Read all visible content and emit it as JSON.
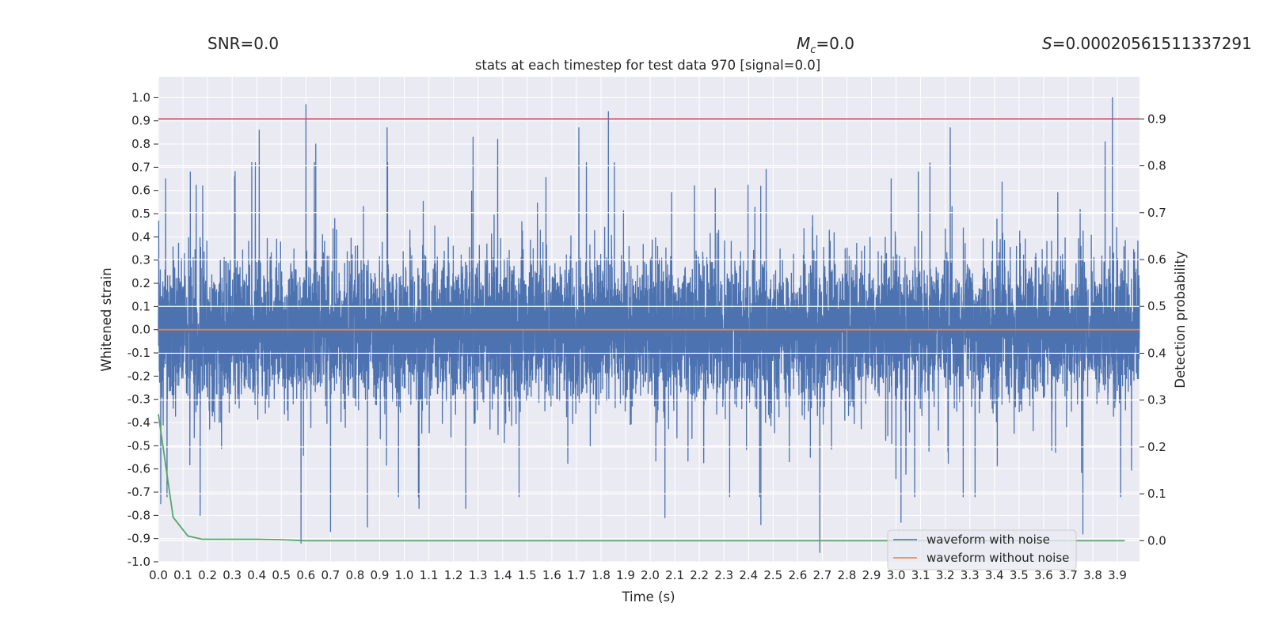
{
  "chart_data": {
    "type": "line",
    "title": "stats at each timestep for test data 970 [signal=0.0]",
    "header": {
      "snr": "SNR=0.0",
      "mc_symbol": "M",
      "mc_sub": "c",
      "mc_value": "=0.0",
      "s_symbol": "S",
      "s_value": "=0.00020561511337291"
    },
    "xlabel": "Time (s)",
    "ylabel": "Whitened strain",
    "y2label": "Detection probability",
    "xlim": [
      0.0,
      3.99
    ],
    "ylim": [
      -1.0,
      1.09
    ],
    "y2lim": [
      -0.045,
      0.99
    ],
    "x_ticks": [
      "0.0",
      "0.1",
      "0.2",
      "0.3",
      "0.4",
      "0.5",
      "0.6",
      "0.7",
      "0.8",
      "0.9",
      "1.0",
      "1.1",
      "1.2",
      "1.3",
      "1.4",
      "1.5",
      "1.6",
      "1.7",
      "1.8",
      "1.9",
      "2.0",
      "2.1",
      "2.2",
      "2.3",
      "2.4",
      "2.5",
      "2.6",
      "2.7",
      "2.8",
      "2.9",
      "3.0",
      "3.1",
      "3.2",
      "3.3",
      "3.4",
      "3.5",
      "3.6",
      "3.7",
      "3.8",
      "3.9"
    ],
    "y_ticks": [
      "1.0",
      "0.9",
      "0.8",
      "0.7",
      "0.6",
      "0.5",
      "0.4",
      "0.3",
      "0.2",
      "0.1",
      "0.0",
      "-0.1",
      "-0.2",
      "-0.3",
      "-0.4",
      "-0.5",
      "-0.6",
      "-0.7",
      "-0.8",
      "-0.9",
      "-1.0"
    ],
    "y2_ticks": [
      "0.9",
      "0.8",
      "0.7",
      "0.6",
      "0.5",
      "0.4",
      "0.3",
      "0.2",
      "0.1",
      "0.0"
    ],
    "threshold": {
      "y2": 0.9,
      "color": "#c44e52"
    },
    "series": [
      {
        "name": "waveform with noise",
        "color": "#4c72b0",
        "axis": "left",
        "kind": "noise",
        "sample_rate": 2048,
        "spikes": [
          {
            "t": 0.03,
            "v": 0.65
          },
          {
            "t": 0.13,
            "v": 0.68
          },
          {
            "t": 0.18,
            "v": 0.62
          },
          {
            "t": 0.31,
            "v": 0.66
          },
          {
            "t": 0.38,
            "v": 0.72
          },
          {
            "t": 0.41,
            "v": 0.86
          },
          {
            "t": 0.6,
            "v": 0.97
          },
          {
            "t": 0.64,
            "v": 0.8
          },
          {
            "t": 0.93,
            "v": 0.87
          },
          {
            "t": 1.28,
            "v": 0.83
          },
          {
            "t": 1.38,
            "v": 0.82
          },
          {
            "t": 1.71,
            "v": 0.87
          },
          {
            "t": 1.83,
            "v": 0.94
          },
          {
            "t": 2.18,
            "v": 0.62
          },
          {
            "t": 2.98,
            "v": 0.65
          },
          {
            "t": 3.22,
            "v": 0.87
          },
          {
            "t": 3.85,
            "v": 0.81
          },
          {
            "t": 3.88,
            "v": 1.0
          },
          {
            "t": 0.01,
            "v": -0.75
          },
          {
            "t": 0.17,
            "v": -0.8
          },
          {
            "t": 0.58,
            "v": -0.92
          },
          {
            "t": 0.7,
            "v": -0.87
          },
          {
            "t": 0.85,
            "v": -0.85
          },
          {
            "t": 1.06,
            "v": -0.77
          },
          {
            "t": 1.25,
            "v": -0.77
          },
          {
            "t": 2.06,
            "v": -0.81
          },
          {
            "t": 2.45,
            "v": -0.84
          },
          {
            "t": 2.69,
            "v": -0.96
          },
          {
            "t": 3.02,
            "v": -0.83
          },
          {
            "t": 3.76,
            "v": -0.88
          }
        ]
      },
      {
        "name": "waveform without noise",
        "color": "#dd8452",
        "axis": "left",
        "kind": "flat",
        "x": [
          0.0,
          3.99
        ],
        "y": [
          0.0,
          0.0
        ]
      },
      {
        "name": "detection probability",
        "color": "#55a868",
        "axis": "right",
        "kind": "line",
        "x": [
          0.0,
          0.06,
          0.12,
          0.18,
          0.3,
          0.4,
          0.5,
          0.6,
          1.0,
          2.0,
          2.5,
          3.0,
          3.5,
          3.93
        ],
        "y": [
          0.27,
          0.05,
          0.01,
          0.003,
          0.003,
          0.003,
          0.002,
          0.0,
          0.0,
          0.0,
          0.0,
          0.0,
          0.0,
          0.0
        ]
      }
    ],
    "legend": {
      "position": "lower-right",
      "entries": [
        {
          "label": "waveform with noise",
          "color": "#4c72b0"
        },
        {
          "label": "waveform without noise",
          "color": "#dd8452"
        }
      ]
    }
  }
}
